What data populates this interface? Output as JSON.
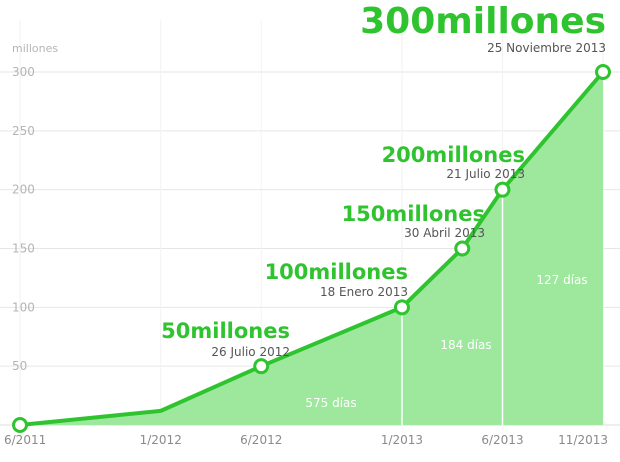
{
  "chart_data": {
    "type": "area",
    "ylabel": "millones",
    "ylim": [
      0,
      300
    ],
    "yticks": [
      50,
      100,
      150,
      200,
      250,
      300
    ],
    "xticks": [
      "6/2011",
      "1/2012",
      "6/2012",
      "1/2013",
      "6/2013",
      "11/2013"
    ],
    "x": [
      "6/2011",
      "1/2012",
      "6/2012",
      "1/2013",
      "4/2013",
      "6/2013",
      "11/2013"
    ],
    "values": [
      0,
      12,
      50,
      100,
      150,
      200,
      300
    ],
    "milestones": [
      {
        "label": "50millones",
        "date": "26 Julio 2012",
        "value": 50
      },
      {
        "label": "100millones",
        "date": "18 Enero 2013",
        "value": 100
      },
      {
        "label": "150millones",
        "date": "30 Abril 2013",
        "value": 150
      },
      {
        "label": "200millones",
        "date": "21 Julio 2013",
        "value": 200
      },
      {
        "label": "300millones",
        "date": "25 Noviembre 2013",
        "value": 300
      }
    ],
    "intervals": [
      "575 días",
      "184 días",
      "127 días"
    ],
    "colors": {
      "fill": "#9de89d",
      "line": "#2fc42f",
      "grid": "#e6e6e6",
      "marker_fill": "#ffffff"
    }
  }
}
